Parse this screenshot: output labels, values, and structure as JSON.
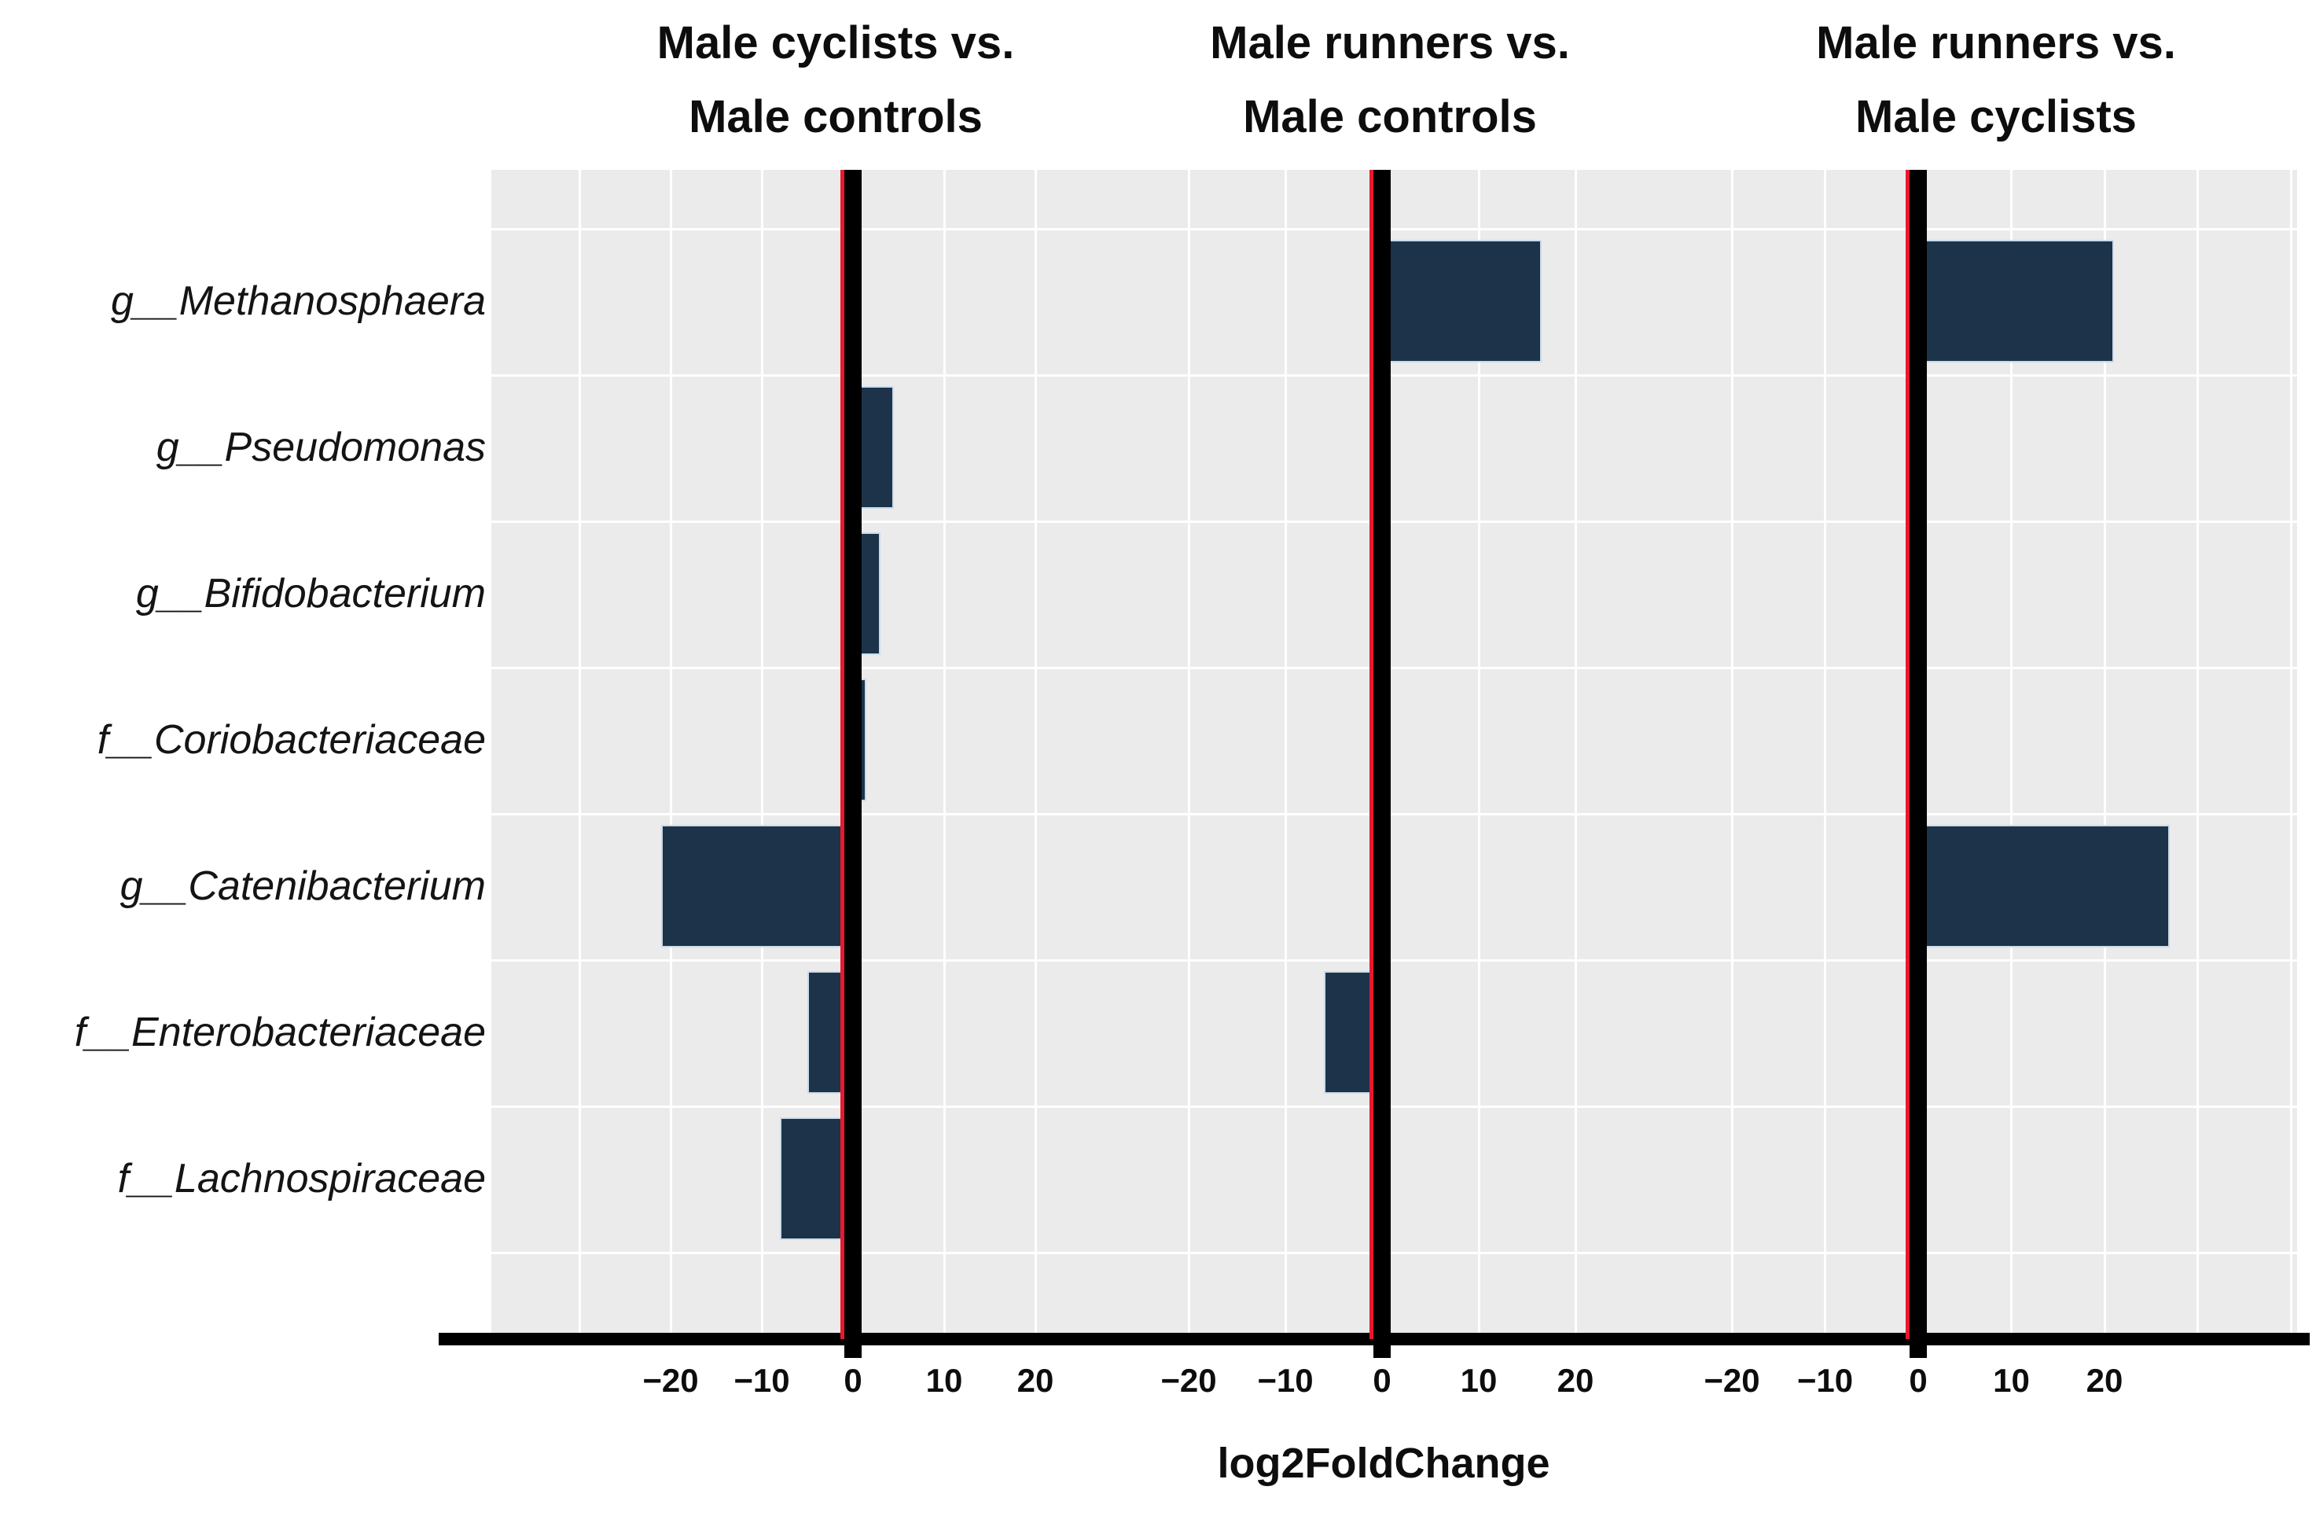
{
  "axis": {
    "x_title": "log2FoldChange",
    "tick_labels": [
      "−20",
      "−10",
      "0",
      "10",
      "20"
    ]
  },
  "facets": [
    {
      "title_line1": "Male cyclists vs.",
      "title_line2": "Male controls"
    },
    {
      "title_line1": "Male runners vs.",
      "title_line2": "Male controls"
    },
    {
      "title_line1": "Male runners vs.",
      "title_line2": "Male cyclists"
    }
  ],
  "categories": [
    "g__Methanosphaera",
    "g__Pseudomonas",
    "g__Bifidobacterium",
    "f__Coriobacteriaceae",
    "g__Catenibacterium",
    "f__Enterobacteriaceae",
    "f__Lachnospiraceae"
  ],
  "colors": {
    "bar_fill": "#1d3349",
    "bar_edge": "#cadcec",
    "panel_background": "#ebebeb",
    "gridline": "#ffffff",
    "zero_line": "#000000",
    "zero_line_accent": "#e8192e",
    "axis_line": "#000000",
    "text": "#0d0d0d"
  },
  "chart_data": {
    "type": "bar",
    "orientation": "horizontal",
    "xlabel": "log2FoldChange",
    "categories": [
      "g__Methanosphaera",
      "g__Pseudomonas",
      "g__Bifidobacterium",
      "f__Coriobacteriaceae",
      "g__Catenibacterium",
      "f__Enterobacteriaceae",
      "f__Lachnospiraceae"
    ],
    "x_ticks": [
      -20,
      -10,
      0,
      10,
      20
    ],
    "grid": true,
    "legend": false,
    "facet_note": "three side-by-side facets sharing the y axis; zero line drawn black over a thin red vline at x=0",
    "series": [
      {
        "name": "Male cyclists vs. Male controls",
        "values": [
          null,
          4.5,
          3,
          1.5,
          -21,
          -5,
          -8
        ]
      },
      {
        "name": "Male runners vs. Male controls",
        "values": [
          16.5,
          null,
          null,
          null,
          null,
          -6,
          null
        ]
      },
      {
        "name": "Male runners vs. Male cyclists",
        "values": [
          21,
          null,
          null,
          null,
          27,
          null,
          null
        ]
      }
    ]
  }
}
